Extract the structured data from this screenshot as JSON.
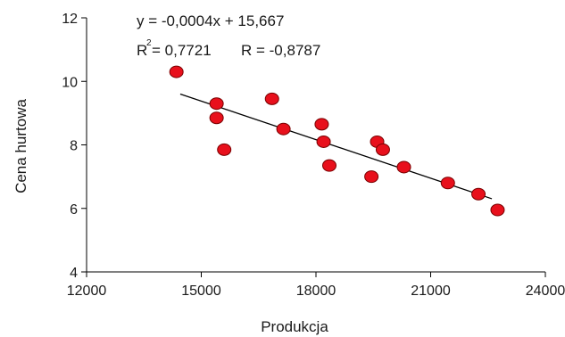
{
  "chart_data": {
    "type": "scatter",
    "xlabel": "Produkcja",
    "ylabel": "Cena hurtowa",
    "xlim": [
      12000,
      24000
    ],
    "ylim": [
      4,
      12
    ],
    "xticks": [
      12000,
      15000,
      18000,
      21000,
      24000
    ],
    "yticks": [
      4,
      6,
      8,
      10,
      12
    ],
    "grid": false,
    "point_color": "#e8101c",
    "point_edge_color": "#7a0000",
    "trendline": {
      "type": "linear",
      "x_range": [
        14450,
        22600
      ]
    },
    "equation": {
      "line": "y = -0,0004x + 15,667",
      "r2_prefix": "R",
      "r2_exp": "2",
      "r2_value": "= 0,7721",
      "r": "R = -0,8787"
    },
    "series": [
      {
        "points": [
          {
            "x": 14350,
            "y": 10.3
          },
          {
            "x": 15400,
            "y": 9.3
          },
          {
            "x": 15400,
            "y": 8.85
          },
          {
            "x": 15600,
            "y": 7.85
          },
          {
            "x": 16850,
            "y": 9.45
          },
          {
            "x": 17150,
            "y": 8.5
          },
          {
            "x": 18150,
            "y": 8.65
          },
          {
            "x": 18200,
            "y": 8.1
          },
          {
            "x": 18350,
            "y": 7.35
          },
          {
            "x": 19450,
            "y": 7.0
          },
          {
            "x": 19600,
            "y": 8.1
          },
          {
            "x": 19750,
            "y": 7.85
          },
          {
            "x": 20300,
            "y": 7.3
          },
          {
            "x": 21450,
            "y": 6.8
          },
          {
            "x": 22250,
            "y": 6.45
          },
          {
            "x": 22750,
            "y": 5.95
          }
        ]
      }
    ]
  }
}
